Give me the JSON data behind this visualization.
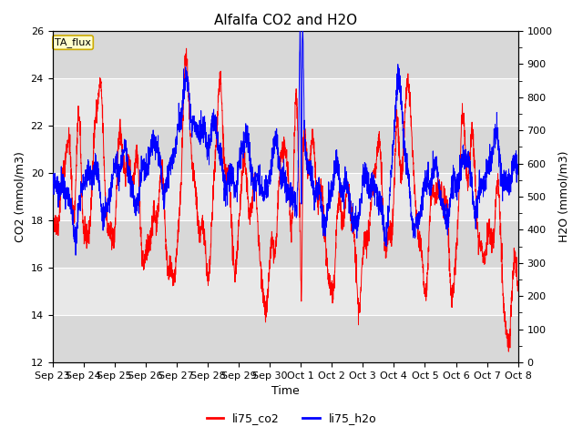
{
  "title": "Alfalfa CO2 and H2O",
  "xlabel": "Time",
  "ylabel_left": "CO2 (mmol/m3)",
  "ylabel_right": "H2O (mmol/m3)",
  "ylim_left": [
    12,
    26
  ],
  "ylim_right": [
    0,
    1000
  ],
  "yticks_left": [
    12,
    14,
    16,
    18,
    20,
    22,
    24,
    26
  ],
  "yticks_right": [
    0,
    100,
    200,
    300,
    400,
    500,
    600,
    700,
    800,
    900,
    1000
  ],
  "legend_labels": [
    "li75_co2",
    "li75_h2o"
  ],
  "legend_colors": [
    "red",
    "blue"
  ],
  "tag_label": "TA_flux",
  "tag_facecolor": "#ffffcc",
  "tag_edgecolor": "#ccaa00",
  "band_colors": [
    "#d8d8d8",
    "#e8e8e8"
  ],
  "grid_color": "white",
  "title_fontsize": 11,
  "axis_fontsize": 9,
  "tick_fontsize": 8,
  "legend_fontsize": 9
}
